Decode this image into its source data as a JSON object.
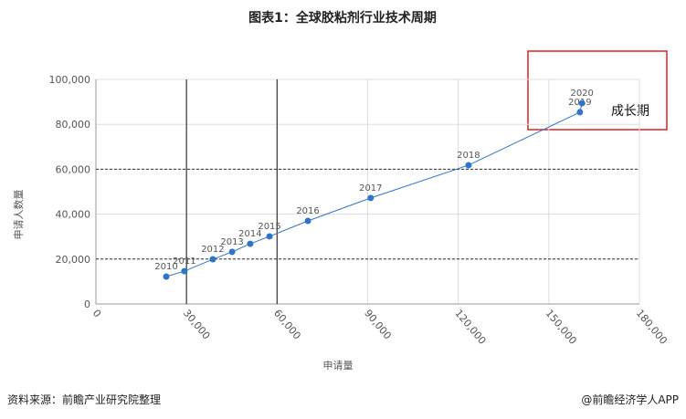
{
  "chart_data": {
    "type": "scatter",
    "title": "图表1：全球胶粘剂行业技术周期",
    "x_label": "申请量",
    "y_label": "申请人数量",
    "labels": [
      "2010",
      "2011",
      "2012",
      "2013",
      "2014",
      "2015",
      "2016",
      "2017",
      "2018",
      "2019",
      "2020"
    ],
    "x": [
      23300,
      29300,
      38700,
      45100,
      51100,
      57500,
      70200,
      91000,
      123400,
      160300,
      161000
    ],
    "values": [
      12200,
      14600,
      19900,
      23200,
      26800,
      30100,
      37000,
      47200,
      61800,
      85400,
      89400
    ],
    "color": "#2e75c9",
    "xlim": [
      0,
      180000
    ],
    "xticks": [
      0,
      {
        "value": 30000,
        "label": "30,000"
      },
      {
        "value": 60000,
        "label": "60,000"
      },
      {
        "value": 90000,
        "label": "90,000"
      },
      {
        "value": 120000,
        "label": "120,000"
      },
      {
        "value": 150000,
        "label": "150,000"
      },
      {
        "value": 180000,
        "label": "180,000"
      }
    ],
    "ylim": [
      0,
      100000
    ],
    "yticks": [
      0,
      {
        "value": 20000,
        "label": "20,000"
      },
      {
        "value": 40000,
        "label": "40,000"
      },
      {
        "value": 60000,
        "label": "60,000"
      },
      {
        "value": 80000,
        "label": "80,000"
      },
      {
        "value": 100000,
        "label": "100,000"
      }
    ],
    "grid": true,
    "phase_lines_x": [
      30000,
      60000
    ],
    "phase_lines_y": [
      20000,
      60000
    ],
    "annotation": "成长期",
    "source": "资料来源：前瞻产业研究院整理",
    "brand": "@前瞻经济学人APP"
  }
}
